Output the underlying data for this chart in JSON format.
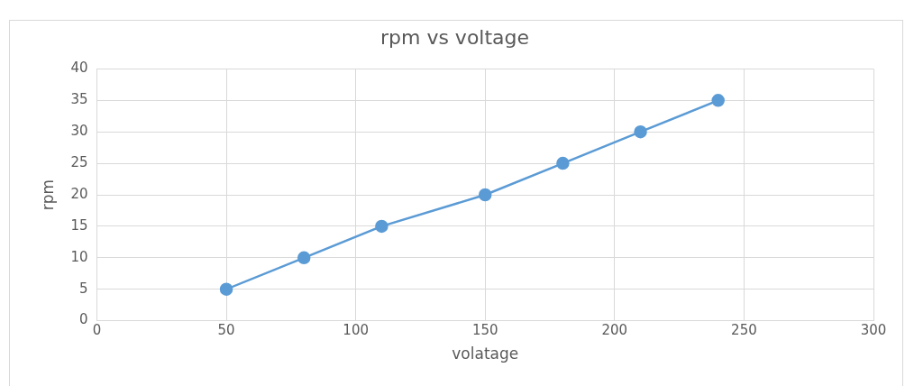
{
  "chart_data": {
    "type": "line",
    "title": "rpm vs voltage",
    "xlabel": "volatage",
    "ylabel": "rpm",
    "series": [
      {
        "color": "#5b9bd5",
        "x": [
          50,
          80,
          110,
          150,
          180,
          210,
          240
        ],
        "values": [
          5,
          10,
          15,
          20,
          25,
          30,
          35
        ]
      }
    ],
    "xlim": [
      0,
      300
    ],
    "xticks": [
      0,
      50,
      100,
      150,
      200,
      250,
      300
    ],
    "ylim": [
      0,
      40
    ],
    "yticks": [
      0,
      5,
      10,
      15,
      20,
      25,
      30,
      35,
      40
    ],
    "grid": true,
    "legend": false,
    "marker": "circle",
    "line_style": "solid"
  }
}
